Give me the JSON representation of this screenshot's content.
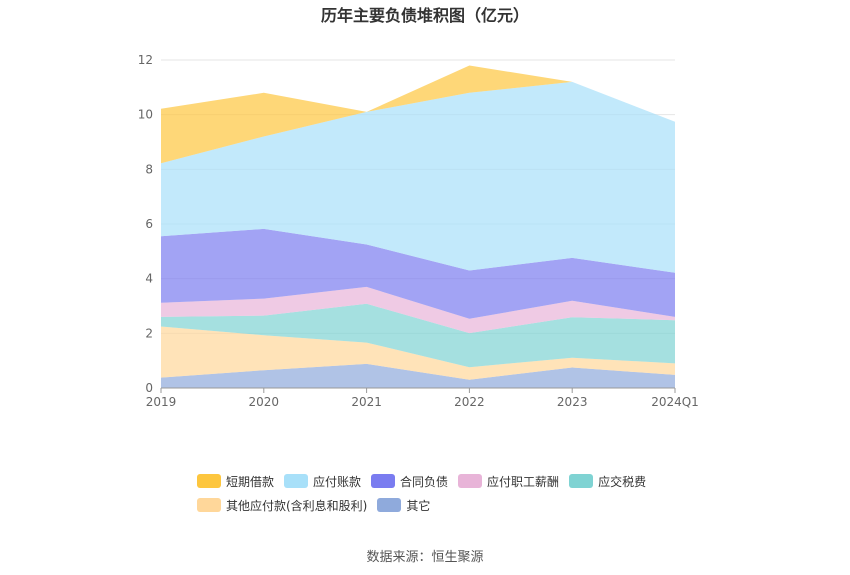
{
  "chart_data": {
    "type": "area",
    "stacked": true,
    "title": "历年主要负债堆积图（亿元）",
    "categories": [
      "2019",
      "2020",
      "2021",
      "2022",
      "2023",
      "2024Q1"
    ],
    "yticks": [
      "0",
      "2",
      "4",
      "6",
      "8",
      "10",
      "12"
    ],
    "ylim": [
      0,
      12
    ],
    "grid": true,
    "legend_position": "bottom",
    "series": [
      {
        "name": "其它",
        "color": "#8FAADC",
        "values": [
          0.38,
          0.65,
          0.88,
          0.3,
          0.75,
          0.48
        ]
      },
      {
        "name": "其他应付款(含利息和股利)",
        "color": "#FFD79A",
        "values": [
          1.87,
          1.28,
          0.78,
          0.46,
          0.36,
          0.42
        ]
      },
      {
        "name": "应交税费",
        "color": "#7FD3D3",
        "values": [
          0.35,
          0.72,
          1.42,
          1.25,
          1.48,
          1.58
        ]
      },
      {
        "name": "应付职工薪酬",
        "color": "#E8B4D8",
        "values": [
          0.52,
          0.62,
          0.62,
          0.52,
          0.6,
          0.12
        ]
      },
      {
        "name": "合同负债",
        "color": "#7A7CF0",
        "values": [
          2.43,
          2.55,
          1.55,
          1.77,
          1.57,
          1.62
        ]
      },
      {
        "name": "应付账款",
        "color": "#A8E0F9",
        "values": [
          2.67,
          3.38,
          4.85,
          6.5,
          6.44,
          5.52
        ]
      },
      {
        "name": "短期借款",
        "color": "#FDC63E",
        "values": [
          2.0,
          1.6,
          0.0,
          1.0,
          0.0,
          0.0
        ]
      }
    ]
  },
  "legend_order": [
    6,
    5,
    4,
    3,
    2,
    1,
    0
  ],
  "source_note": "数据来源：恒生聚源"
}
